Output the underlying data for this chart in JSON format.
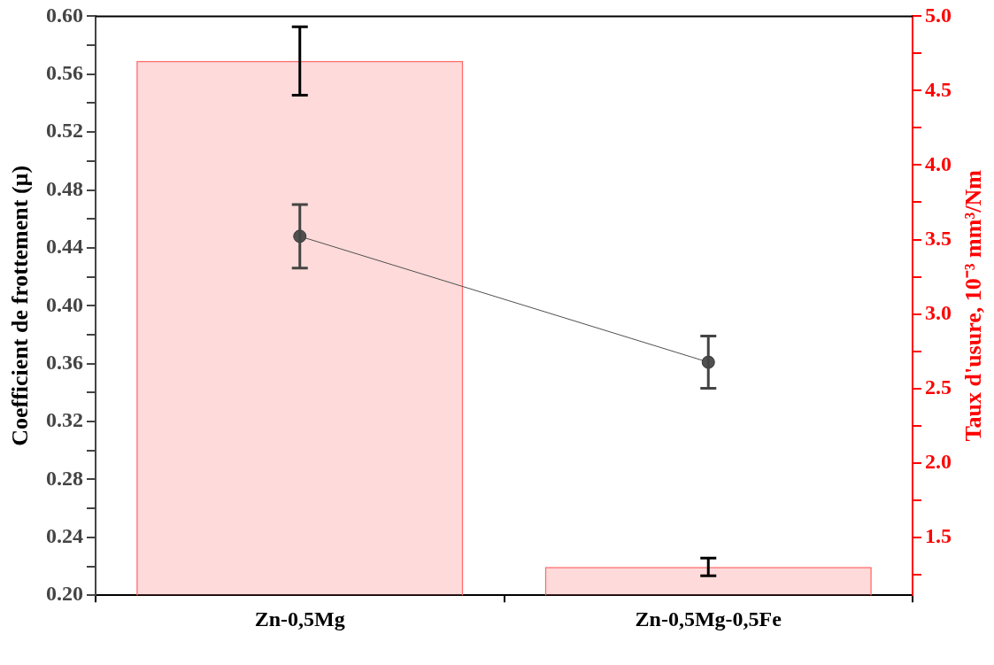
{
  "chart_data": {
    "type": "bar",
    "xlabel": null,
    "ylabel": "Coefficient de frottement (µ)",
    "y2label": "Taux d'usure, 10⁻³ mm³/Nm",
    "categories": [
      "Zn-0,5Mg",
      "Zn-0,5Mg-0,5Fe"
    ],
    "series": [
      {
        "axis": "y2",
        "color": "#ff6b6b",
        "values": [
          4.7,
          1.3
        ],
        "errors": [
          0.23,
          0.06
        ]
      },
      {
        "type": "line",
        "axis": "y",
        "color": "#505050",
        "values": [
          0.448,
          0.361
        ],
        "errors": [
          0.022,
          0.018
        ],
        "marker": "circle",
        "line_style": "solid"
      }
    ],
    "ylim": [
      0.2,
      0.6
    ],
    "yticks": [
      {
        "value": 0.2,
        "label": "0.20"
      },
      {
        "value": 0.22,
        "label": null
      },
      0.24,
      {
        "value": 0.26,
        "label": null
      },
      0.28,
      {
        "value": 0.3,
        "label": null
      },
      0.32,
      {
        "value": 0.34,
        "label": null
      },
      0.36,
      {
        "value": 0.38,
        "label": null
      },
      {
        "value": 0.4,
        "label": "0.40"
      },
      {
        "value": 0.42,
        "label": null
      },
      0.44,
      {
        "value": 0.46,
        "label": null
      },
      0.48,
      {
        "value": 0.5,
        "label": null
      },
      0.52,
      {
        "value": 0.54,
        "label": null
      },
      0.56,
      {
        "value": 0.58,
        "label": null
      },
      {
        "value": 0.6,
        "label": "0.60"
      }
    ],
    "y2lim": [
      1.11,
      5.0
    ],
    "y2ticks": [
      {
        "value": 1.25,
        "label": null
      },
      1.5,
      {
        "value": 1.75,
        "label": null
      },
      {
        "value": 2.0,
        "label": "2.0"
      },
      {
        "value": 2.25,
        "label": null
      },
      2.5,
      {
        "value": 2.75,
        "label": null
      },
      {
        "value": 3.0,
        "label": "3.0"
      },
      {
        "value": 3.25,
        "label": null
      },
      3.5,
      {
        "value": 3.75,
        "label": null
      },
      {
        "value": 4.0,
        "label": "4.0"
      },
      {
        "value": 4.25,
        "label": null
      },
      4.5,
      {
        "value": 4.75,
        "label": null
      },
      {
        "value": 5.0,
        "label": "5.0"
      }
    ],
    "grid": false,
    "legend": false
  }
}
